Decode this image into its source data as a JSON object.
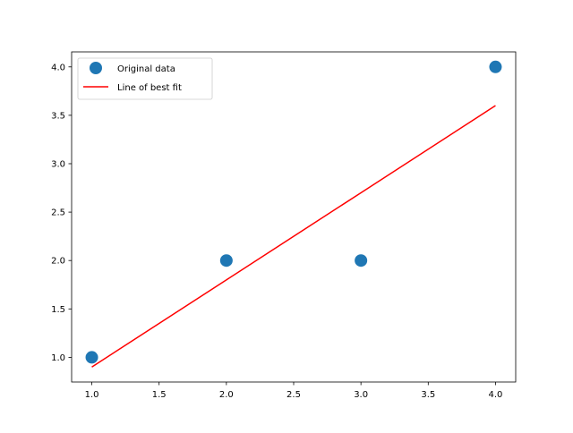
{
  "chart_data": {
    "type": "scatter",
    "title": "",
    "xlabel": "",
    "ylabel": "",
    "xlim": [
      0.85,
      4.15
    ],
    "ylim": [
      0.745,
      4.155
    ],
    "xticks": [
      "1.0",
      "1.5",
      "2.0",
      "2.5",
      "3.0",
      "3.5",
      "4.0"
    ],
    "yticks": [
      "1.0",
      "1.5",
      "2.0",
      "2.5",
      "3.0",
      "3.5",
      "4.0"
    ],
    "grid": false,
    "legend_placement": "top-left",
    "series": [
      {
        "name": "Original data",
        "kind": "scatter",
        "color": "#1f77b4",
        "x": [
          1,
          2,
          3,
          4
        ],
        "y": [
          1,
          2,
          2,
          4
        ]
      },
      {
        "name": "Line of best fit",
        "kind": "line",
        "color": "#ff0000",
        "x": [
          1,
          2,
          3,
          4
        ],
        "y": [
          0.9,
          1.8,
          2.7,
          3.6
        ]
      }
    ]
  }
}
